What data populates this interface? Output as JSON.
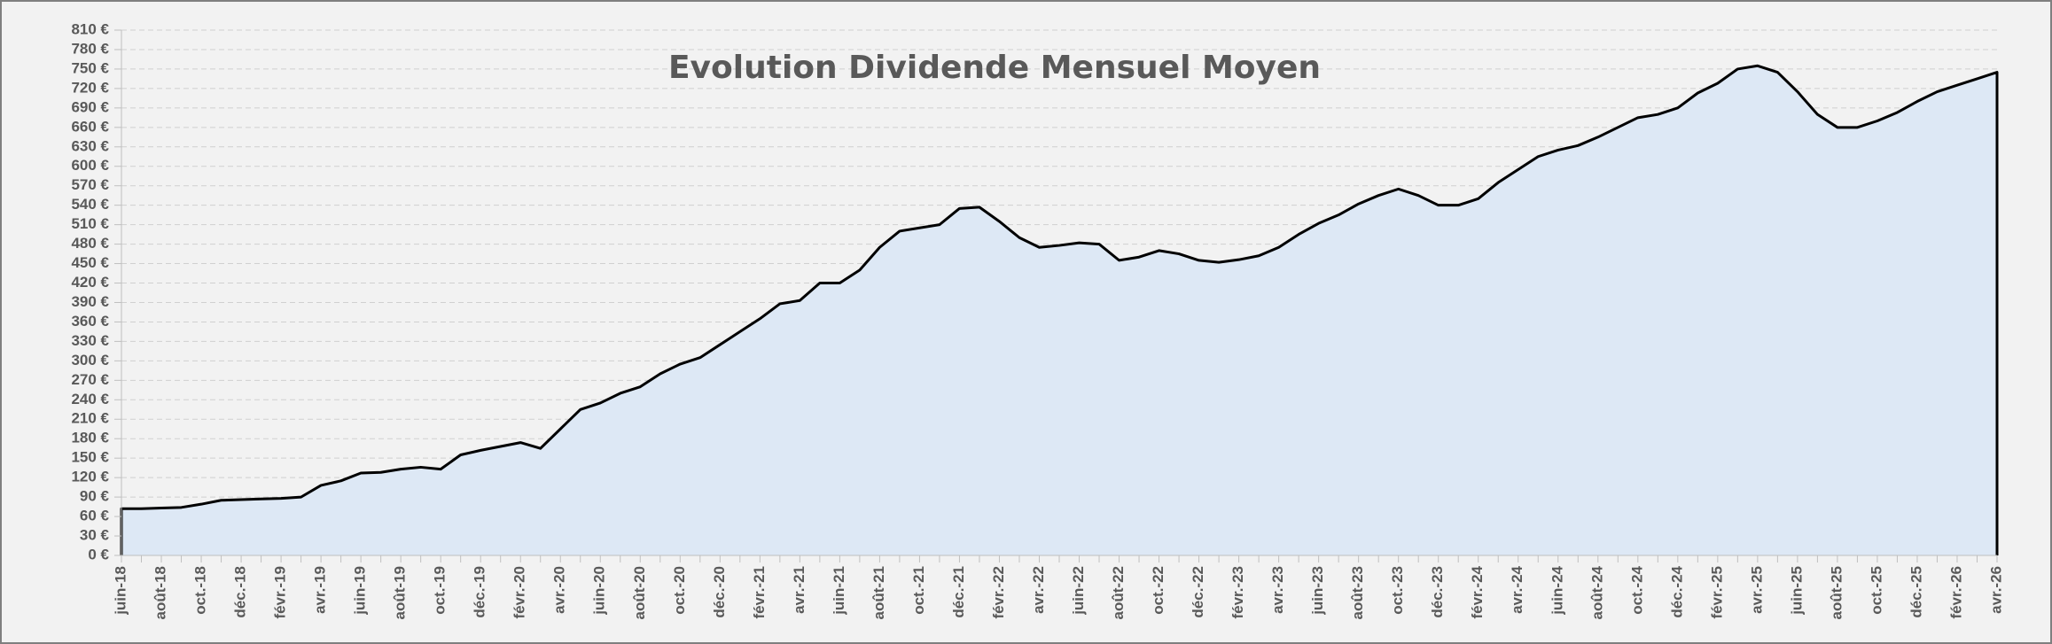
{
  "chart_data": {
    "type": "area",
    "title": "Evolution Dividende Mensuel Moyen",
    "categories": [
      "juin-18",
      null,
      "août-18",
      null,
      "oct.-18",
      null,
      "déc.-18",
      null,
      "févr.-19",
      null,
      "avr.-19",
      null,
      "juin-19",
      null,
      "août-19",
      null,
      "oct.-19",
      null,
      "déc.-19",
      null,
      "févr.-20",
      null,
      "avr.-20",
      null,
      "juin-20",
      null,
      "août-20",
      null,
      "oct.-20",
      null,
      "déc.-20",
      null,
      "févr.-21",
      null,
      "avr.-21",
      null,
      "juin-21",
      null,
      "août-21",
      null,
      "oct.-21",
      null,
      "déc.-21",
      null,
      "févr.-22",
      null,
      "avr.-22",
      null,
      "juin-22",
      null,
      "août-22",
      null,
      "oct.-22",
      null,
      "déc.-22",
      null,
      "févr.-23",
      null,
      "avr.-23",
      null,
      "juin-23",
      null,
      "août-23",
      null,
      "oct.-23",
      null,
      "déc.-23",
      null,
      "févr.-24",
      null,
      "avr.-24",
      null,
      "juin-24",
      null,
      "août-24",
      null,
      "oct.-24",
      null,
      "déc.-24",
      null,
      "févr.-25",
      null,
      "avr.-25",
      null,
      "juin-25",
      null,
      "août-25",
      null,
      "oct.-25",
      null,
      "déc.-25",
      null,
      "févr.-26",
      null,
      "avr.-26"
    ],
    "values": [
      72,
      72,
      73,
      74,
      79,
      85,
      86,
      87,
      88,
      90,
      108,
      115,
      127,
      128,
      133,
      136,
      133,
      155,
      162,
      168,
      174,
      165,
      195,
      225,
      235,
      250,
      260,
      280,
      295,
      305,
      325,
      345,
      365,
      388,
      393,
      420,
      420,
      440,
      475,
      500,
      505,
      510,
      535,
      537,
      515,
      490,
      475,
      478,
      482,
      480,
      455,
      460,
      470,
      465,
      455,
      452,
      456,
      462,
      475,
      495,
      512,
      525,
      542,
      555,
      565,
      555,
      540,
      540,
      550,
      575,
      595,
      615,
      625,
      632,
      645,
      660,
      675,
      680,
      690,
      713,
      728,
      750,
      755,
      745,
      715,
      680,
      660,
      660,
      670,
      683,
      700,
      715,
      725,
      735,
      745
    ],
    "color": "#000000",
    "fill": "#dde8f5",
    "ylim": [
      0,
      810
    ],
    "yticks": [
      {
        "value": 0,
        "label": "0 €"
      },
      {
        "value": 30,
        "label": "30 €"
      },
      {
        "value": 60,
        "label": "60 €"
      },
      {
        "value": 90,
        "label": "90 €"
      },
      {
        "value": 120,
        "label": "120 €"
      },
      {
        "value": 150,
        "label": "150 €"
      },
      {
        "value": 180,
        "label": "180 €"
      },
      {
        "value": 210,
        "label": "210 €"
      },
      {
        "value": 240,
        "label": "240 €"
      },
      {
        "value": 270,
        "label": "270 €"
      },
      {
        "value": 300,
        "label": "300 €"
      },
      {
        "value": 330,
        "label": "330 €"
      },
      {
        "value": 360,
        "label": "360 €"
      },
      {
        "value": 390,
        "label": "390 €"
      },
      {
        "value": 420,
        "label": "420 €"
      },
      {
        "value": 450,
        "label": "450 €"
      },
      {
        "value": 480,
        "label": "480 €"
      },
      {
        "value": 510,
        "label": "510 €"
      },
      {
        "value": 540,
        "label": "540 €"
      },
      {
        "value": 570,
        "label": "570 €"
      },
      {
        "value": 600,
        "label": "600 €"
      },
      {
        "value": 630,
        "label": "630 €"
      },
      {
        "value": 660,
        "label": "660 €"
      },
      {
        "value": 690,
        "label": "690 €"
      },
      {
        "value": 720,
        "label": "720 €"
      },
      {
        "value": 750,
        "label": "750 €"
      },
      {
        "value": 780,
        "label": "780 €"
      },
      {
        "value": 810,
        "label": "810 €"
      }
    ],
    "grid": true
  }
}
